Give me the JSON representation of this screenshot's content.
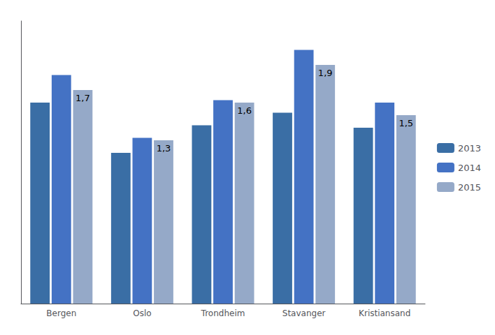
{
  "chart_data": {
    "type": "bar",
    "categories": [
      "Bergen",
      "Oslo",
      "Trondheim",
      "Stavanger",
      "Kristiansand"
    ],
    "series": [
      {
        "name": "2013",
        "color": "#3A6EA5",
        "values": [
          1.6,
          1.2,
          1.42,
          1.52,
          1.4
        ]
      },
      {
        "name": "2014",
        "color": "#4472C4",
        "values": [
          1.82,
          1.32,
          1.62,
          2.02,
          1.6
        ]
      },
      {
        "name": "2015",
        "color": "#95A9C8",
        "values": [
          1.7,
          1.3,
          1.6,
          1.9,
          1.5
        ],
        "value_labels": [
          "1,7",
          "1,3",
          "1,6",
          "1,9",
          "1,5"
        ],
        "data_labels": true
      }
    ],
    "ylim": [
      0,
      2.25
    ],
    "tick_labels": "x",
    "grid": false,
    "legend": "right"
  }
}
